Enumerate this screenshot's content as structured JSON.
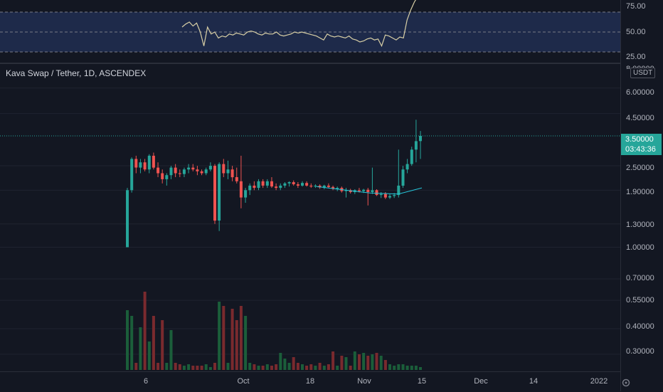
{
  "chart": {
    "symbol_title": "Kava Swap / Tether, 1D, ASCENDEX",
    "currency": "USDT",
    "last_price": "3.50000",
    "countdown": "03:43:36",
    "rsi_axis": [
      "75.00",
      "50.00",
      "25.00"
    ],
    "price_axis": [
      "8.00000",
      "6.00000",
      "4.50000",
      "2.50000",
      "1.90000",
      "1.30000",
      "1.00000",
      "0.70000",
      "0.55000",
      "0.40000",
      "0.30000"
    ],
    "time_axis": [
      "6",
      "Oct",
      "18",
      "Nov",
      "15",
      "Dec",
      "14",
      "2022"
    ],
    "colors": {
      "background": "#131722",
      "up": "#26a69a",
      "down": "#ef5350",
      "rsi_line": "#d8cfa6",
      "rsi_band": "#1e2a4a",
      "trendline": "#26c6da"
    },
    "icons": [
      "gear-icon"
    ]
  },
  "chart_data": {
    "type": "candlestick",
    "scale": "log",
    "y_ticks": [
      8.0,
      6.0,
      4.5,
      2.5,
      1.9,
      1.3,
      1.0,
      0.7,
      0.55,
      0.4,
      0.3
    ],
    "ohlc": [
      [
        1.0,
        1.95,
        1.0,
        1.9
      ],
      [
        1.9,
        2.75,
        1.85,
        2.7
      ],
      [
        2.7,
        2.8,
        2.3,
        2.45
      ],
      [
        2.45,
        2.7,
        2.3,
        2.6
      ],
      [
        2.6,
        2.7,
        2.35,
        2.4
      ],
      [
        2.4,
        2.85,
        2.3,
        2.8
      ],
      [
        2.8,
        2.9,
        2.4,
        2.45
      ],
      [
        2.45,
        2.6,
        2.2,
        2.3
      ],
      [
        2.3,
        2.4,
        2.05,
        2.15
      ],
      [
        2.15,
        2.3,
        2.0,
        2.25
      ],
      [
        2.25,
        2.5,
        2.15,
        2.45
      ],
      [
        2.45,
        2.55,
        2.2,
        2.3
      ],
      [
        2.3,
        2.4,
        2.2,
        2.28
      ],
      [
        2.28,
        2.45,
        2.2,
        2.4
      ],
      [
        2.4,
        2.55,
        2.3,
        2.45
      ],
      [
        2.45,
        2.55,
        2.35,
        2.4
      ],
      [
        2.4,
        2.5,
        2.25,
        2.35
      ],
      [
        2.35,
        2.4,
        2.25,
        2.3
      ],
      [
        2.3,
        2.45,
        2.25,
        2.4
      ],
      [
        2.4,
        2.6,
        2.35,
        2.5
      ],
      [
        2.5,
        2.55,
        1.3,
        1.35
      ],
      [
        1.35,
        2.6,
        1.2,
        2.55
      ],
      [
        2.55,
        2.7,
        2.2,
        2.3
      ],
      [
        2.3,
        2.65,
        2.15,
        2.4
      ],
      [
        2.4,
        2.5,
        2.1,
        2.2
      ],
      [
        2.2,
        2.45,
        2.05,
        2.1
      ],
      [
        2.1,
        2.8,
        1.55,
        1.75
      ],
      [
        1.75,
        1.95,
        1.65,
        1.9
      ],
      [
        1.9,
        2.05,
        1.8,
        2.0
      ],
      [
        2.0,
        2.1,
        1.9,
        1.95
      ],
      [
        1.95,
        2.15,
        1.9,
        2.1
      ],
      [
        2.1,
        2.15,
        1.95,
        2.0
      ],
      [
        2.0,
        2.15,
        1.95,
        2.1
      ],
      [
        2.1,
        2.2,
        1.95,
        1.98
      ],
      [
        1.98,
        2.05,
        1.9,
        1.95
      ],
      [
        1.95,
        2.05,
        1.9,
        2.0
      ],
      [
        2.0,
        2.08,
        1.95,
        2.05
      ],
      [
        2.05,
        2.1,
        1.98,
        2.08
      ],
      [
        2.08,
        2.12,
        2.0,
        2.03
      ],
      [
        2.03,
        2.08,
        1.95,
        2.0
      ],
      [
        2.0,
        2.1,
        1.98,
        2.06
      ],
      [
        2.06,
        2.1,
        1.98,
        2.0
      ],
      [
        2.0,
        2.05,
        1.95,
        1.98
      ],
      [
        1.98,
        2.03,
        1.95,
        2.0
      ],
      [
        2.0,
        2.03,
        1.93,
        1.96
      ],
      [
        1.96,
        2.02,
        1.92,
        2.0
      ],
      [
        2.0,
        2.05,
        1.95,
        1.97
      ],
      [
        1.97,
        2.0,
        1.9,
        1.93
      ],
      [
        1.93,
        1.98,
        1.88,
        1.95
      ],
      [
        1.95,
        1.98,
        1.85,
        1.88
      ],
      [
        1.88,
        1.95,
        1.75,
        1.9
      ],
      [
        1.9,
        1.93,
        1.83,
        1.86
      ],
      [
        1.86,
        1.92,
        1.82,
        1.9
      ],
      [
        1.9,
        1.95,
        1.85,
        1.88
      ],
      [
        1.88,
        1.93,
        1.84,
        1.91
      ],
      [
        1.91,
        1.95,
        1.6,
        1.86
      ],
      [
        1.86,
        2.45,
        1.82,
        1.9
      ],
      [
        1.9,
        1.92,
        1.78,
        1.8
      ],
      [
        1.8,
        1.86,
        1.74,
        1.82
      ],
      [
        1.82,
        1.86,
        1.72,
        1.75
      ],
      [
        1.75,
        1.82,
        1.72,
        1.78
      ],
      [
        1.78,
        1.84,
        1.74,
        1.8
      ],
      [
        1.8,
        3.0,
        1.75,
        2.0
      ],
      [
        2.0,
        2.5,
        1.95,
        2.4
      ],
      [
        2.4,
        2.7,
        2.3,
        2.55
      ],
      [
        2.55,
        3.1,
        2.5,
        3.0
      ],
      [
        3.0,
        4.2,
        2.6,
        3.3
      ],
      [
        3.3,
        3.7,
        2.7,
        3.5
      ]
    ],
    "volume": [
      0.42,
      0.38,
      0.05,
      0.3,
      0.55,
      0.2,
      0.38,
      0.05,
      0.35,
      0.05,
      0.28,
      0.05,
      0.04,
      0.03,
      0.04,
      0.03,
      0.03,
      0.03,
      0.04,
      0.02,
      0.05,
      0.48,
      0.45,
      0.05,
      0.43,
      0.35,
      0.45,
      0.38,
      0.05,
      0.04,
      0.03,
      0.03,
      0.04,
      0.03,
      0.04,
      0.12,
      0.08,
      0.05,
      0.09,
      0.05,
      0.04,
      0.03,
      0.04,
      0.03,
      0.05,
      0.03,
      0.04,
      0.13,
      0.03,
      0.1,
      0.09,
      0.03,
      0.13,
      0.11,
      0.12,
      0.1,
      0.11,
      0.12,
      0.1,
      0.07,
      0.04,
      0.03,
      0.04,
      0.04,
      0.03,
      0.03,
      0.03,
      0.02
    ],
    "rsi": [
      55,
      58,
      60,
      56,
      59,
      50,
      36,
      55,
      48,
      50,
      44,
      46,
      45,
      48,
      47,
      49,
      48,
      47,
      50,
      51,
      50,
      48,
      47,
      49,
      48,
      48,
      50,
      47,
      46,
      47,
      48,
      50,
      49,
      50,
      49,
      48,
      47,
      46,
      44,
      42,
      48,
      46,
      45,
      46,
      45,
      44,
      46,
      43,
      42,
      40,
      41,
      43,
      44,
      42,
      43,
      36,
      47,
      46,
      44,
      42,
      45,
      44,
      62,
      72,
      80,
      86,
      89,
      84
    ],
    "rsi_levels": [
      70,
      50,
      30
    ]
  }
}
